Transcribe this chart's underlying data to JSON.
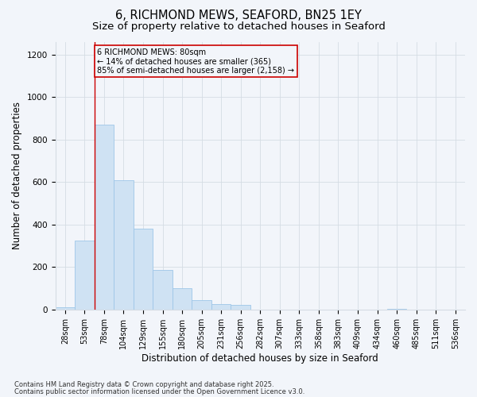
{
  "title1": "6, RICHMOND MEWS, SEAFORD, BN25 1EY",
  "title2": "Size of property relative to detached houses in Seaford",
  "xlabel": "Distribution of detached houses by size in Seaford",
  "ylabel": "Number of detached properties",
  "categories": [
    "28sqm",
    "53sqm",
    "78sqm",
    "104sqm",
    "129sqm",
    "155sqm",
    "180sqm",
    "205sqm",
    "231sqm",
    "256sqm",
    "282sqm",
    "307sqm",
    "333sqm",
    "358sqm",
    "383sqm",
    "409sqm",
    "434sqm",
    "460sqm",
    "485sqm",
    "511sqm",
    "536sqm"
  ],
  "values": [
    10,
    325,
    870,
    610,
    380,
    185,
    100,
    45,
    25,
    20,
    0,
    0,
    0,
    0,
    0,
    0,
    0,
    5,
    0,
    0,
    0
  ],
  "bar_color": "#cfe2f3",
  "bar_edge_color": "#9ec6e8",
  "grid_color": "#d5dce4",
  "annotation_box_color": "#cc0000",
  "vline_color": "#cc0000",
  "vline_bin_index": 2,
  "annotation_line1": "6 RICHMOND MEWS: 80sqm",
  "annotation_line2": "← 14% of detached houses are smaller (365)",
  "annotation_line3": "85% of semi-detached houses are larger (2,158) →",
  "footer1": "Contains HM Land Registry data © Crown copyright and database right 2025.",
  "footer2": "Contains public sector information licensed under the Open Government Licence v3.0.",
  "ylim": [
    0,
    1260
  ],
  "yticks": [
    0,
    200,
    400,
    600,
    800,
    1000,
    1200
  ],
  "bg_color": "#f2f5fa",
  "title_fontsize": 10.5,
  "subtitle_fontsize": 9.5,
  "axis_label_fontsize": 8.5,
  "tick_fontsize": 7,
  "annotation_fontsize": 7,
  "footer_fontsize": 6
}
